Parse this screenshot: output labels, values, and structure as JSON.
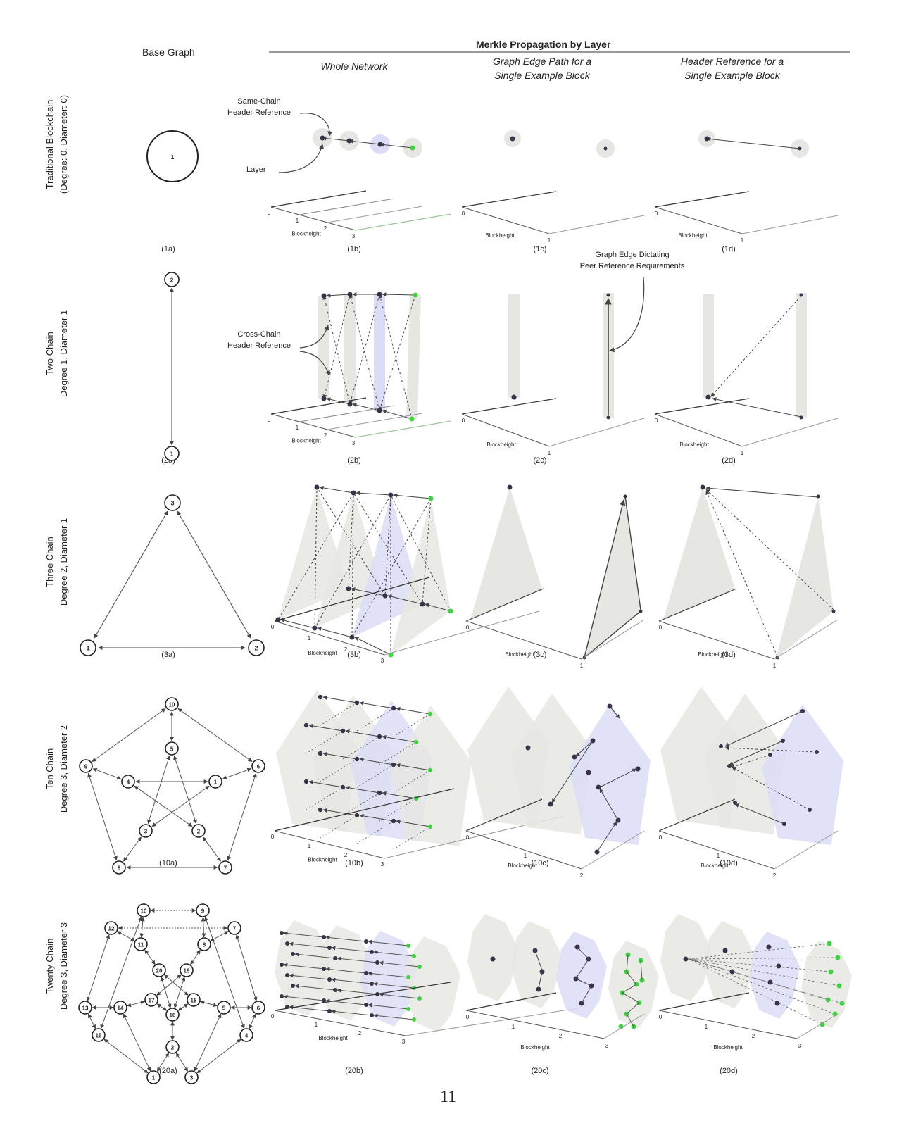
{
  "header": {
    "base_graph": "Base Graph",
    "merkle": "Merkle Propagation by Layer",
    "col_b": "Whole Network",
    "col_c": [
      "Graph Edge Path for a",
      "Single Example Block"
    ],
    "col_d": [
      "Header Reference for a",
      "Single Example Block"
    ]
  },
  "rows": [
    {
      "label": [
        "Traditional Blockchain",
        "(Degree: 0, Diameter: 0)"
      ],
      "captions": [
        "(1a)",
        "(1b)",
        "(1c)",
        "(1d)"
      ]
    },
    {
      "label": [
        "Two Chain",
        "Degree 1, Diameter 1"
      ],
      "captions": [
        "(2a)",
        "(2b)",
        "(2c)",
        "(2d)"
      ]
    },
    {
      "label": [
        "Three Chain",
        "Degree 2, Diameter 1"
      ],
      "captions": [
        "(3a)",
        "(3b)",
        "(3c)",
        "(3d)"
      ]
    },
    {
      "label": [
        "Ten Chain",
        "Degree 3, Diameter 2"
      ],
      "captions": [
        "(10a)",
        "(10b)",
        "(10c)",
        "(10d)"
      ]
    },
    {
      "label": [
        "Twenty Chain",
        "Degree 3, Diameter 3"
      ],
      "captions": [
        "(20a)",
        "(20b)",
        "(20c)",
        "(20d)"
      ]
    }
  ],
  "annotations": {
    "same_chain": [
      "Same-Chain",
      "Header Reference"
    ],
    "layer": "Layer",
    "cross_chain": [
      "Cross-Chain",
      "Header Reference"
    ],
    "graph_edge": [
      "Graph Edge Dictating",
      "Peer Reference Requirements"
    ]
  },
  "axis": {
    "label": "Blockheight",
    "ticks4": [
      "0",
      "1",
      "2",
      "3"
    ],
    "ticks2": [
      "0",
      "1"
    ],
    "ticks3": [
      "0",
      "1",
      "2"
    ]
  },
  "graphs": {
    "g1": [
      "1"
    ],
    "g2": [
      "2",
      "1"
    ],
    "g3": [
      "3",
      "1",
      "2"
    ],
    "g10": [
      "10",
      "5",
      "9",
      "6",
      "4",
      "1",
      "3",
      "2",
      "8",
      "7"
    ],
    "g20": [
      "10",
      "9",
      "12",
      "7",
      "11",
      "8",
      "20",
      "19",
      "13",
      "14",
      "17",
      "18",
      "5",
      "6",
      "16",
      "15",
      "4",
      "2",
      "1",
      "3"
    ]
  },
  "page_number": "11",
  "colors": {
    "node": "#3a3148",
    "green": "#3bd43b",
    "grey_plane": "#e6e6e2",
    "blue_plane": "#dcdcf6"
  }
}
